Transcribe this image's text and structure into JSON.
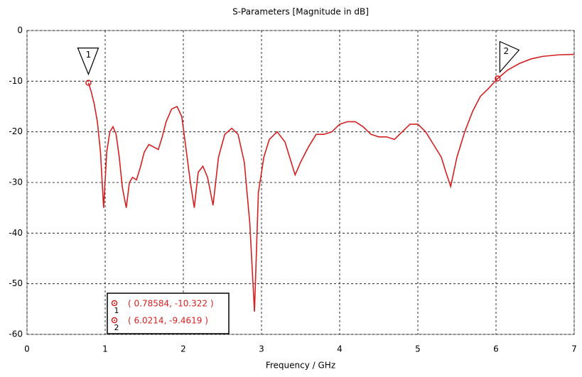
{
  "chart_data": {
    "type": "line",
    "title": "S-Parameters [Magnitude in dB]",
    "x_label": "Frequency / GHz",
    "xlim": [
      0,
      7
    ],
    "xticks": [
      0,
      1,
      2,
      3,
      4,
      5,
      6,
      7
    ],
    "ylim": [
      -60,
      0
    ],
    "yticks": [
      0,
      -10,
      -20,
      -30,
      -40,
      -50,
      -60
    ],
    "grid": true,
    "x": [
      0.78584,
      0.82,
      0.86,
      0.9,
      0.94,
      0.98,
      1.02,
      1.06,
      1.1,
      1.14,
      1.18,
      1.22,
      1.27,
      1.31,
      1.35,
      1.4,
      1.45,
      1.5,
      1.56,
      1.62,
      1.68,
      1.73,
      1.78,
      1.85,
      1.92,
      1.98,
      2.04,
      2.09,
      2.14,
      2.19,
      2.25,
      2.31,
      2.38,
      2.45,
      2.53,
      2.62,
      2.7,
      2.78,
      2.85,
      2.91,
      2.96,
      3.03,
      3.1,
      3.2,
      3.3,
      3.38,
      3.43,
      3.5,
      3.6,
      3.7,
      3.8,
      3.9,
      4.0,
      4.1,
      4.2,
      4.3,
      4.4,
      4.5,
      4.6,
      4.7,
      4.8,
      4.9,
      5.0,
      5.1,
      5.2,
      5.3,
      5.36,
      5.42,
      5.5,
      5.6,
      5.7,
      5.8,
      5.9,
      6.0214,
      6.15,
      6.3,
      6.45,
      6.6,
      6.8,
      7.0
    ],
    "series": [
      {
        "color": "#d42020",
        "values": [
          -10.322,
          -12,
          -14.5,
          -18,
          -24,
          -35,
          -24,
          -20,
          -19,
          -20.5,
          -25,
          -31,
          -35,
          -30,
          -29,
          -29.5,
          -27,
          -24,
          -22.5,
          -23,
          -23.5,
          -21,
          -18,
          -15.5,
          -15,
          -17,
          -24,
          -30,
          -35,
          -28,
          -26.8,
          -29,
          -34.5,
          -25,
          -20.5,
          -19.3,
          -20.5,
          -26,
          -38,
          -55.5,
          -32,
          -25,
          -21.5,
          -20,
          -22,
          -26,
          -28.5,
          -26,
          -23,
          -20.5,
          -20.5,
          -20,
          -18.5,
          -18,
          -18,
          -19,
          -20.5,
          -21,
          -21,
          -21.5,
          -20,
          -18.5,
          -18.5,
          -20,
          -22.5,
          -25,
          -28,
          -30.8,
          -25,
          -20,
          -16,
          -13,
          -11.5,
          -9.4619,
          -7.8,
          -6.5,
          -5.6,
          -5.1,
          -4.8,
          -4.7
        ]
      }
    ],
    "markers": [
      {
        "label": "1",
        "x": 0.78584,
        "y": -10.322,
        "readout": "( 0.78584, -10.322 )"
      },
      {
        "label": "2",
        "x": 6.0214,
        "y": -9.4619,
        "readout": "( 6.0214, -9.4619 )"
      }
    ]
  }
}
